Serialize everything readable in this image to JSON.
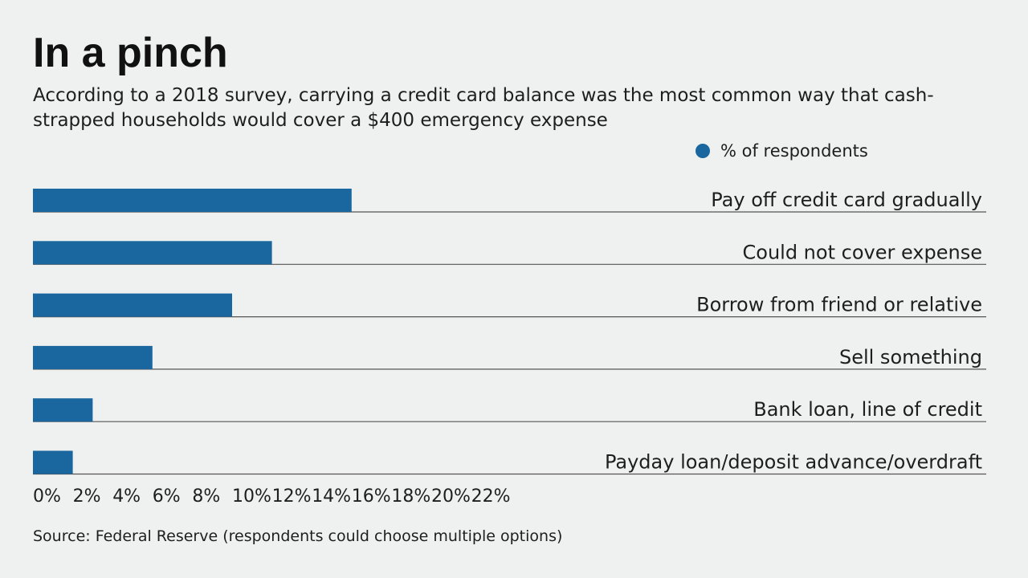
{
  "header": {
    "title": "In a pinch",
    "subtitle": "According to a 2018 survey, carrying a credit card balance was the most common way that cash-strapped households would cover a $400 emergency expense"
  },
  "legend": {
    "label": "% of respondents"
  },
  "footer": {
    "source": "Source: Federal Reserve (respondents could choose multiple options)"
  },
  "colors": {
    "bar": "#1a67a0",
    "rule": "#555555",
    "background": "#eff1f0"
  },
  "chart_data": {
    "type": "bar",
    "orientation": "horizontal",
    "title": "In a pinch",
    "xlabel": "",
    "ylabel": "",
    "legend": [
      "% of respondents"
    ],
    "legend_position": "top-right",
    "categories": [
      "Pay off credit card gradually",
      "Could not cover expense",
      "Borrow from friend or relative",
      "Sell something",
      "Bank loan, line of credit",
      "Payday loan/deposit advance/overdraft"
    ],
    "values": [
      16,
      12,
      10,
      6,
      3,
      2
    ],
    "xlim": [
      0,
      24
    ],
    "ticks": [
      0,
      2,
      4,
      6,
      8,
      10,
      12,
      14,
      16,
      18,
      20,
      22
    ],
    "tick_labels": [
      "0%",
      "2%",
      "4%",
      "6%",
      "8%",
      "10%",
      "12%",
      "14%",
      "16%",
      "18%",
      "20%",
      "22%"
    ]
  }
}
